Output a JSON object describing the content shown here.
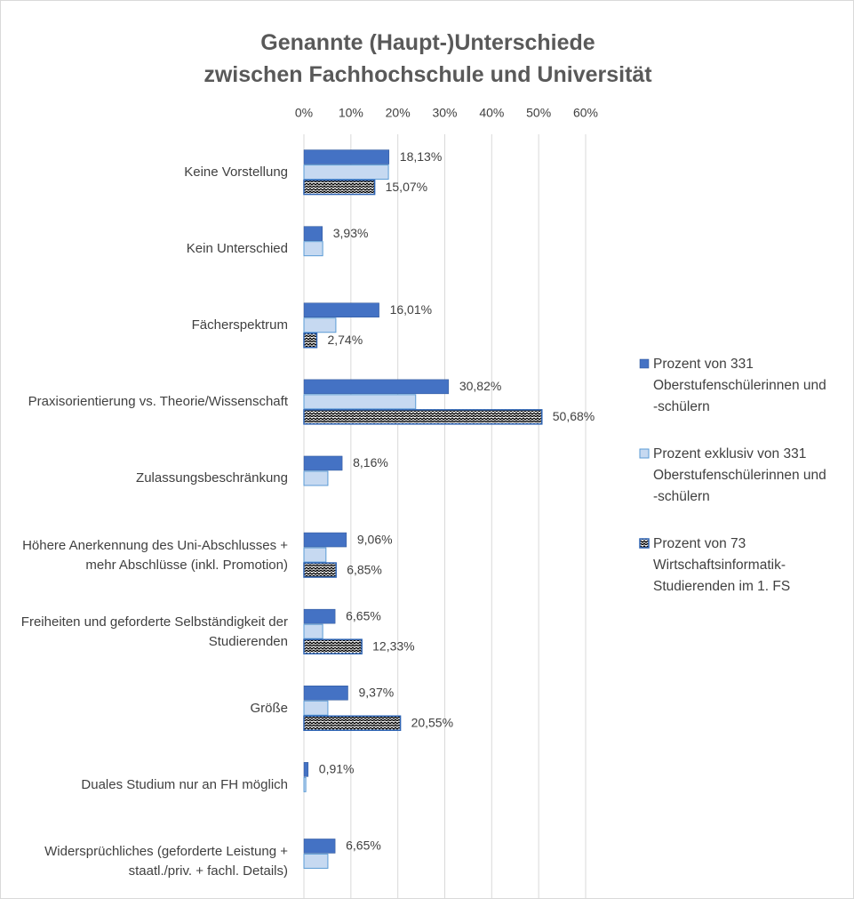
{
  "chart_data": {
    "type": "bar",
    "orientation": "horizontal",
    "title": [
      "Genannte  (Haupt-)Unterschiede",
      "zwischen  Fachhochschule und  Universität"
    ],
    "categories": [
      "Keine Vorstellung",
      "Kein Unterschied",
      "Fächerspektrum",
      "Praxisorientierung vs. Theorie/Wissenschaft",
      "Zulassungsbeschränkung",
      "Höhere Anerkennung des Uni-Abschlusses + mehr Abschlüsse (inkl. Promotion)",
      "Freiheiten und geforderte Selbständigkeit der Studierenden",
      "Größe",
      "Duales Studium nur an FH möglich",
      "Widersprüchliches (geforderte Leistung + staatl./priv. + fachl. Details)"
    ],
    "series": [
      {
        "name": "Prozent von 331 Oberstufenschülerinnen und -schülern",
        "color": "#4472c4",
        "pattern": "solid",
        "values": [
          18.13,
          3.93,
          16.01,
          30.82,
          8.16,
          9.06,
          6.65,
          9.37,
          0.91,
          6.65
        ],
        "value_labels": [
          "18,13%",
          "3,93%",
          "16,01%",
          "30,82%",
          "8,16%",
          "9,06%",
          "6,65%",
          "9,37%",
          "0,91%",
          "6,65%"
        ]
      },
      {
        "name": "Prozent exklusiv von 331 Oberstufenschülerinnen und -schülern",
        "color": "#c6d9f1",
        "pattern": "solid",
        "values": [
          18.0,
          4.0,
          6.8,
          23.8,
          5.1,
          4.7,
          4.0,
          5.1,
          0.4,
          5.1
        ]
      },
      {
        "name": "Prozent von 73 Wirtschaftsinformatik-Studierenden im 1. FS",
        "color": "#2e64b4",
        "pattern": "zigzag",
        "values": [
          15.07,
          null,
          2.74,
          50.68,
          null,
          6.85,
          12.33,
          20.55,
          null,
          null
        ],
        "value_labels": [
          "15,07%",
          null,
          "2,74%",
          "50,68%",
          null,
          "6,85%",
          "12,33%",
          "20,55%",
          null,
          null
        ]
      }
    ],
    "xlim": [
      0,
      60
    ],
    "xticks": [
      {
        "value": 0,
        "label": "0%"
      },
      {
        "value": 10,
        "label": "10%"
      },
      {
        "value": 20,
        "label": "20%"
      },
      {
        "value": 30,
        "label": "30%"
      },
      {
        "value": 40,
        "label": "40%"
      },
      {
        "value": 50,
        "label": "50%"
      },
      {
        "value": 60,
        "label": "60%"
      }
    ],
    "grid": true,
    "legend": "right"
  }
}
